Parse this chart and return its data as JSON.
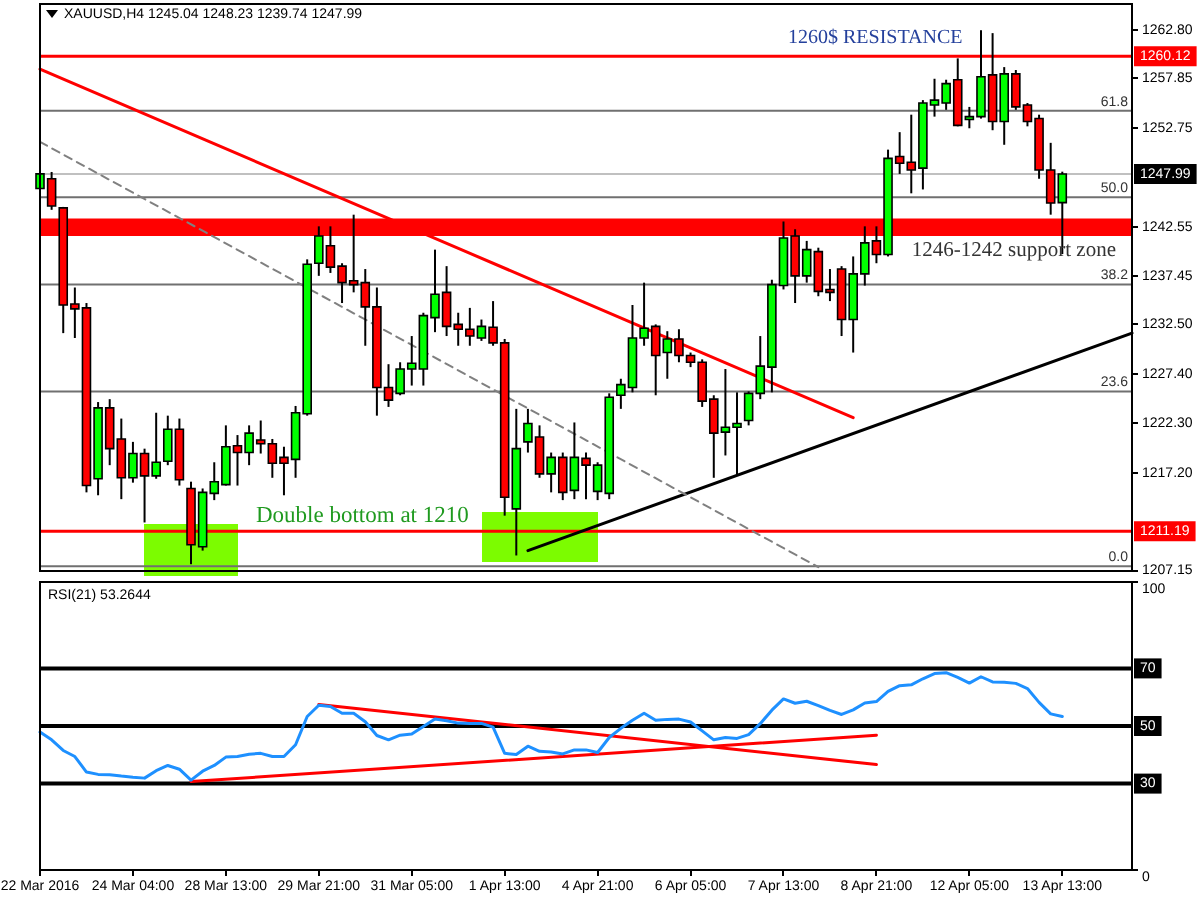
{
  "chart_data": [
    {
      "type": "candlestick",
      "title": "XAUUSD,H4 1245.04 1248.23 1239.74 1247.99",
      "categories": [
        null,
        null,
        null,
        null,
        null,
        null,
        null,
        null,
        null,
        null,
        null,
        null,
        null,
        null,
        null,
        null,
        null,
        null,
        null,
        null,
        null,
        null,
        null,
        null,
        null,
        null,
        null,
        null,
        null,
        null,
        null,
        null,
        null,
        null,
        null,
        null,
        null,
        null,
        null,
        null,
        null,
        null,
        null,
        null,
        null,
        null,
        null,
        null,
        null,
        null,
        null,
        null,
        null,
        null,
        null,
        null,
        null,
        null,
        null,
        null,
        null,
        null,
        null,
        null,
        null,
        null,
        null,
        null,
        null,
        null,
        null,
        null,
        null,
        null,
        null,
        null,
        null,
        null,
        null,
        null,
        null,
        null,
        null,
        null,
        null,
        null,
        null,
        null,
        null,
        null,
        null,
        null,
        null,
        null,
        null
      ],
      "ohlc": [
        [
          1246.5,
          1248.8,
          1244.5,
          1248.0
        ],
        [
          1247.5,
          1248.2,
          1244.3,
          1244.7
        ],
        [
          1244.5,
          1244.6,
          1231.6,
          1234.5
        ],
        [
          1234.6,
          1236.3,
          1231.1,
          1234.1
        ],
        [
          1234.2,
          1234.7,
          1215.2,
          1215.9
        ],
        [
          1216.6,
          1224.5,
          1214.9,
          1223.9
        ],
        [
          1223.9,
          1224.8,
          1218.0,
          1219.7
        ],
        [
          1220.7,
          1222.8,
          1214.5,
          1216.7
        ],
        [
          1216.7,
          1220.4,
          1216.2,
          1219.2
        ],
        [
          1219.2,
          1219.7,
          1212.1,
          1216.9
        ],
        [
          1216.9,
          1223.4,
          1216.6,
          1218.3
        ],
        [
          1218.4,
          1223.1,
          1218.0,
          1221.7
        ],
        [
          1221.7,
          1222.8,
          1215.9,
          1216.5
        ],
        [
          1215.6,
          1216.3,
          1207.8,
          1209.8
        ],
        [
          1209.6,
          1215.6,
          1209.2,
          1215.2
        ],
        [
          1215.1,
          1218.3,
          1214.4,
          1216.3
        ],
        [
          1216.0,
          1222.1,
          1215.9,
          1219.9
        ],
        [
          1220.0,
          1221.1,
          1215.9,
          1219.3
        ],
        [
          1219.3,
          1222.1,
          1218.0,
          1221.3
        ],
        [
          1220.6,
          1222.6,
          1219.2,
          1220.2
        ],
        [
          1220.2,
          1220.7,
          1216.7,
          1218.2
        ],
        [
          1218.8,
          1219.9,
          1214.9,
          1218.2
        ],
        [
          1218.6,
          1224.1,
          1216.7,
          1223.4
        ],
        [
          1223.3,
          1239.2,
          1223.1,
          1238.7
        ],
        [
          1238.8,
          1242.6,
          1237.5,
          1241.6
        ],
        [
          1240.6,
          1242.6,
          1237.8,
          1238.4
        ],
        [
          1238.5,
          1238.8,
          1234.7,
          1236.8
        ],
        [
          1237.0,
          1243.8,
          1235.8,
          1236.6
        ],
        [
          1236.8,
          1238.2,
          1230.3,
          1234.3
        ],
        [
          1234.3,
          1236.3,
          1223.1,
          1226.0
        ],
        [
          1226.0,
          1228.4,
          1224.0,
          1224.7
        ],
        [
          1225.4,
          1228.6,
          1225.2,
          1227.9
        ],
        [
          1227.9,
          1231.3,
          1226.2,
          1228.5
        ],
        [
          1227.9,
          1233.7,
          1226.2,
          1233.4
        ],
        [
          1233.2,
          1240.2,
          1231.7,
          1235.6
        ],
        [
          1235.8,
          1238.5,
          1231.3,
          1232.3
        ],
        [
          1232.5,
          1233.7,
          1230.3,
          1232.0
        ],
        [
          1232.0,
          1234.2,
          1230.3,
          1231.3
        ],
        [
          1231.1,
          1233.0,
          1230.8,
          1232.3
        ],
        [
          1232.2,
          1234.9,
          1230.3,
          1230.6
        ],
        [
          1230.6,
          1231.0,
          1212.8,
          1214.7
        ],
        [
          1213.5,
          1223.8,
          1208.7,
          1219.7
        ],
        [
          1220.4,
          1223.8,
          1219.3,
          1222.3
        ],
        [
          1220.9,
          1222.1,
          1216.7,
          1217.1
        ],
        [
          1217.1,
          1219.3,
          1215.2,
          1218.8
        ],
        [
          1218.8,
          1219.3,
          1214.4,
          1215.2
        ],
        [
          1215.4,
          1222.4,
          1214.5,
          1218.8
        ],
        [
          1218.7,
          1219.3,
          1214.5,
          1218.0
        ],
        [
          1215.3,
          1218.3,
          1214.4,
          1218.0
        ],
        [
          1215.1,
          1225.4,
          1214.5,
          1225.0
        ],
        [
          1225.2,
          1226.9,
          1223.8,
          1226.3
        ],
        [
          1226.0,
          1234.5,
          1225.5,
          1231.1
        ],
        [
          1231.1,
          1236.8,
          1230.3,
          1232.1
        ],
        [
          1232.3,
          1232.5,
          1225.2,
          1229.3
        ],
        [
          1229.6,
          1231.8,
          1226.9,
          1231.0
        ],
        [
          1231.0,
          1232.0,
          1228.6,
          1229.3
        ],
        [
          1229.3,
          1229.6,
          1228.1,
          1228.6
        ],
        [
          1228.6,
          1228.9,
          1224.0,
          1224.6
        ],
        [
          1224.8,
          1225.2,
          1216.7,
          1221.3
        ],
        [
          1221.4,
          1227.9,
          1219.0,
          1221.9
        ],
        [
          1221.9,
          1225.5,
          1216.9,
          1222.3
        ],
        [
          1222.6,
          1225.6,
          1222.1,
          1225.4
        ],
        [
          1225.4,
          1231.3,
          1224.8,
          1228.2
        ],
        [
          1228.1,
          1237.1,
          1225.5,
          1236.6
        ],
        [
          1236.5,
          1243.1,
          1236.1,
          1241.4
        ],
        [
          1241.6,
          1242.3,
          1234.7,
          1237.5
        ],
        [
          1237.5,
          1241.1,
          1236.8,
          1240.2
        ],
        [
          1240.0,
          1240.4,
          1235.4,
          1235.9
        ],
        [
          1236.1,
          1238.2,
          1234.9,
          1235.8
        ],
        [
          1238.2,
          1238.5,
          1231.3,
          1233.0
        ],
        [
          1233.0,
          1239.5,
          1229.6,
          1237.7
        ],
        [
          1237.7,
          1242.6,
          1236.5,
          1240.9
        ],
        [
          1241.1,
          1242.6,
          1238.8,
          1239.7
        ],
        [
          1239.7,
          1250.5,
          1239.5,
          1249.6
        ],
        [
          1249.8,
          1252.3,
          1248.0,
          1249.1
        ],
        [
          1249.2,
          1254.1,
          1246.0,
          1248.4
        ],
        [
          1248.6,
          1255.6,
          1246.4,
          1255.3
        ],
        [
          1255.1,
          1257.8,
          1253.9,
          1255.6
        ],
        [
          1255.3,
          1257.7,
          1254.6,
          1257.3
        ],
        [
          1257.7,
          1259.9,
          1252.9,
          1253.0
        ],
        [
          1253.6,
          1254.9,
          1252.7,
          1253.9
        ],
        [
          1253.9,
          1262.8,
          1253.7,
          1258.0
        ],
        [
          1258.2,
          1262.5,
          1252.5,
          1253.4
        ],
        [
          1253.4,
          1259.0,
          1251.0,
          1258.3
        ],
        [
          1258.3,
          1258.7,
          1254.6,
          1254.9
        ],
        [
          1255.1,
          1255.3,
          1252.9,
          1253.4
        ],
        [
          1253.7,
          1254.1,
          1247.5,
          1248.4
        ],
        [
          1248.4,
          1251.2,
          1243.8,
          1245.0
        ],
        [
          1245.04,
          1248.23,
          1239.74,
          1247.99
        ],
        null,
        null,
        null,
        null,
        null,
        null
      ],
      "colors": [
        "#00ff00",
        "#ff0000",
        "#ff0000",
        "#ff0000",
        "#ff0000",
        "#00ff00",
        "#ff0000",
        "#ff0000",
        "#00ff00",
        "#ff0000",
        "#00ff00",
        "#00ff00",
        "#ff0000",
        "#ff0000",
        "#00ff00",
        "#00ff00",
        "#00ff00",
        "#ff0000",
        "#00ff00",
        "#ff0000",
        "#ff0000",
        "#ff0000",
        "#00ff00",
        "#00ff00",
        "#00ff00",
        "#ff0000",
        "#ff0000",
        "#ff0000",
        "#ff0000",
        "#ff0000",
        "#ff0000",
        "#00ff00",
        "#00ff00",
        "#00ff00",
        "#00ff00",
        "#ff0000",
        "#ff0000",
        "#ff0000",
        "#00ff00",
        "#ff0000",
        "#ff0000",
        "#00ff00",
        "#00ff00",
        "#ff0000",
        "#00ff00",
        "#ff0000",
        "#00ff00",
        "#ff0000",
        "#00ff00",
        "#00ff00",
        "#00ff00",
        "#00ff00",
        "#00ff00",
        "#ff0000",
        "#00ff00",
        "#ff0000",
        "#ff0000",
        "#ff0000",
        "#ff0000",
        "#00ff00",
        "#00ff00",
        "#00ff00",
        "#00ff00",
        "#00ff00",
        "#00ff00",
        "#ff0000",
        "#00ff00",
        "#ff0000",
        "#ff0000",
        "#ff0000",
        "#00ff00",
        "#00ff00",
        "#ff0000",
        "#00ff00",
        "#ff0000",
        "#ff0000",
        "#00ff00",
        "#00ff00",
        "#00ff00",
        "#ff0000",
        "#00ff00",
        "#00ff00",
        "#ff0000",
        "#00ff00",
        "#ff0000",
        "#ff0000",
        "#ff0000",
        "#ff0000",
        "#00ff00",
        null,
        null,
        null,
        null,
        null,
        null
      ],
      "series": [
        {
          "type": "line",
          "color": "#ff0000",
          "values": [
            1258.8,
            null,
            null,
            null,
            null,
            null,
            null,
            null,
            null,
            null,
            null,
            null,
            null,
            null,
            null,
            null,
            null,
            null,
            null,
            null,
            null,
            null,
            null,
            null,
            null,
            null,
            null,
            null,
            null,
            null,
            null,
            null,
            null,
            null,
            null,
            null,
            null,
            null,
            null,
            null,
            null,
            null,
            null,
            null,
            null,
            null,
            null,
            null,
            null,
            null,
            null,
            null,
            null,
            null,
            null,
            null,
            null,
            null,
            null,
            null,
            null,
            null,
            null,
            null,
            null,
            null,
            null,
            null,
            null,
            null,
            1222.9,
            null,
            null,
            null,
            null,
            null,
            null,
            null,
            null,
            null,
            null,
            null,
            null,
            null,
            null,
            null,
            null,
            null,
            null,
            null,
            null,
            null,
            null,
            null,
            null
          ]
        },
        {
          "type": "line",
          "color": "#808080",
          "line_style": "dashed",
          "values": [
            1251.3,
            null,
            null,
            null,
            null,
            null,
            null,
            null,
            null,
            null,
            null,
            null,
            null,
            null,
            null,
            null,
            null,
            null,
            null,
            null,
            null,
            null,
            null,
            null,
            null,
            null,
            null,
            null,
            null,
            null,
            null,
            null,
            null,
            null,
            null,
            null,
            null,
            null,
            null,
            null,
            null,
            null,
            null,
            null,
            null,
            null,
            null,
            null,
            null,
            null,
            null,
            null,
            null,
            null,
            null,
            null,
            null,
            null,
            null,
            null,
            null,
            null,
            null,
            null,
            null,
            null,
            null,
            1207.5,
            null,
            null,
            null,
            null,
            null,
            null,
            null,
            null,
            null,
            null,
            null,
            null,
            null,
            null,
            null,
            null,
            null,
            null,
            null,
            null,
            null,
            null,
            null,
            null,
            null,
            null,
            null
          ]
        },
        {
          "type": "line",
          "color": "#000000",
          "values": [
            null,
            null,
            null,
            null,
            null,
            null,
            null,
            null,
            null,
            null,
            null,
            null,
            null,
            null,
            null,
            null,
            null,
            null,
            null,
            null,
            null,
            null,
            null,
            null,
            null,
            null,
            null,
            null,
            null,
            null,
            null,
            null,
            null,
            null,
            null,
            null,
            null,
            null,
            null,
            null,
            null,
            null,
            1209.2,
            null,
            null,
            null,
            null,
            null,
            null,
            null,
            null,
            null,
            null,
            null,
            null,
            null,
            null,
            null,
            null,
            null,
            null,
            null,
            null,
            null,
            null,
            null,
            null,
            null,
            null,
            null,
            null,
            null,
            null,
            null,
            null,
            null,
            null,
            null,
            null,
            null,
            null,
            null,
            null,
            null,
            null,
            null,
            null,
            null,
            null,
            null,
            null,
            null,
            null,
            null,
            1231.6
          ]
        }
      ],
      "ylim": [
        1207.1,
        1265.5
      ],
      "yticks": [
        {
          "value": 1262.8,
          "label": "1262.80"
        },
        1257.85,
        1252.75,
        1242.55,
        1237.45,
        {
          "value": 1232.5,
          "label": "1232.50"
        },
        {
          "value": 1227.4,
          "label": "1227.40"
        },
        {
          "value": 1222.3,
          "label": "1222.30"
        },
        {
          "value": 1217.2,
          "label": "1217.20"
        },
        1207.15
      ],
      "ref_lines": [
        {
          "axis": "y",
          "value": 1260.12,
          "label": "1260.12",
          "color": "#ff0000"
        },
        {
          "axis": "y",
          "value": 1211.19,
          "label": "1211.19",
          "color": "#ff0000"
        },
        {
          "axis": "y",
          "value": 1247.99,
          "label": "1247.99",
          "color": "#c0c0c0"
        },
        {
          "axis": "y",
          "value": 1254.5,
          "color": "#707070"
        },
        {
          "axis": "y",
          "value": 1245.6,
          "color": "#707070"
        },
        {
          "axis": "y",
          "value": 1236.6,
          "color": "#707070"
        },
        {
          "axis": "y",
          "value": 1225.6,
          "color": "#707070"
        },
        {
          "axis": "y",
          "value": 1207.6,
          "color": "#707070"
        }
      ],
      "bands": [
        {
          "axis": "y",
          "from": 1241.6,
          "to": 1243.4,
          "label": "1246-1242 support zone",
          "color": "#ff0000"
        }
      ],
      "annotations": [
        "1260$ RESISTANCE",
        "Double bottom at 1210",
        {
          "text": "61.8",
          "y": 1254.5
        },
        {
          "text": "50.0",
          "y": 1245.6
        },
        {
          "text": "38.2",
          "y": 1236.6
        },
        {
          "text": "23.6",
          "y": 1225.6
        },
        {
          "text": "0.0",
          "y": 1207.6
        }
      ],
      "tick_labels": "y"
    },
    {
      "type": "line",
      "title": "RSI(21) 53.2644",
      "categories": [
        "22 Mar 2016",
        null,
        null,
        null,
        null,
        null,
        null,
        null,
        "24 Mar 04:00",
        null,
        null,
        null,
        null,
        null,
        null,
        null,
        "28 Mar 13:00",
        null,
        null,
        null,
        null,
        null,
        null,
        null,
        "29 Mar 21:00",
        null,
        null,
        null,
        null,
        null,
        null,
        null,
        "31 Mar 05:00",
        null,
        null,
        null,
        null,
        null,
        null,
        null,
        "1 Apr 13:00",
        null,
        null,
        null,
        null,
        null,
        null,
        null,
        "4 Apr 21:00",
        null,
        null,
        null,
        null,
        null,
        null,
        null,
        "6 Apr 05:00",
        null,
        null,
        null,
        null,
        null,
        null,
        null,
        "7 Apr 13:00",
        null,
        null,
        null,
        null,
        null,
        null,
        null,
        "8 Apr 21:00",
        null,
        null,
        null,
        null,
        null,
        null,
        null,
        "12 Apr 05:00",
        null,
        null,
        null,
        null,
        null,
        null,
        null,
        "13 Apr 13:00",
        null,
        null,
        null,
        null,
        null,
        null
      ],
      "series": [
        {
          "color": "#1e90ff",
          "values": [
            47.9,
            45.2,
            41.5,
            39.4,
            34.0,
            33.2,
            33.1,
            32.6,
            32.2,
            31.9,
            34.5,
            36.3,
            35.0,
            31.2,
            34.3,
            36.3,
            39.2,
            39.4,
            40.2,
            40.5,
            39.4,
            39.4,
            43.5,
            53.3,
            57.2,
            56.8,
            54.4,
            54.4,
            51.5,
            46.7,
            45.2,
            46.8,
            47.2,
            49.8,
            52.4,
            51.8,
            51.0,
            50.9,
            50.9,
            49.6,
            40.5,
            40.1,
            43.0,
            41.2,
            41.0,
            40.3,
            41.7,
            41.7,
            40.8,
            46.0,
            49.2,
            52.0,
            54.4,
            52.0,
            52.3,
            52.4,
            51.4,
            48.3,
            45.2,
            46.0,
            45.7,
            47.0,
            50.8,
            55.5,
            59.4,
            57.9,
            58.6,
            57.1,
            55.4,
            54.0,
            55.6,
            58.0,
            58.5,
            62.0,
            64.0,
            64.3,
            66.4,
            68.2,
            68.5,
            66.9,
            64.9,
            67.1,
            65.3,
            65.2,
            64.8,
            63.0,
            58.2,
            54.2,
            53.3,
            null,
            null,
            null,
            null,
            null,
            null
          ]
        },
        {
          "color": "#ff0000",
          "values": [
            null,
            null,
            null,
            null,
            null,
            null,
            null,
            null,
            null,
            null,
            null,
            null,
            null,
            null,
            null,
            null,
            null,
            null,
            null,
            null,
            null,
            null,
            null,
            null,
            57.5,
            null,
            null,
            null,
            null,
            null,
            null,
            null,
            null,
            null,
            null,
            null,
            null,
            null,
            null,
            null,
            null,
            null,
            null,
            null,
            null,
            null,
            null,
            null,
            null,
            null,
            null,
            null,
            null,
            null,
            null,
            null,
            null,
            null,
            null,
            null,
            null,
            null,
            null,
            null,
            null,
            null,
            null,
            null,
            null,
            null,
            null,
            null,
            36.6,
            null,
            null,
            null,
            null,
            null,
            null,
            null,
            null,
            null,
            null,
            null,
            null,
            null,
            null,
            null,
            null,
            null,
            null,
            null,
            null,
            null,
            null
          ]
        },
        {
          "color": "#ff0000",
          "values": [
            null,
            null,
            null,
            null,
            null,
            null,
            null,
            null,
            null,
            null,
            null,
            null,
            null,
            30.7,
            null,
            null,
            null,
            null,
            null,
            null,
            null,
            null,
            null,
            null,
            null,
            null,
            null,
            null,
            null,
            null,
            null,
            null,
            null,
            null,
            null,
            null,
            null,
            null,
            null,
            null,
            null,
            null,
            null,
            null,
            null,
            null,
            null,
            null,
            null,
            null,
            null,
            null,
            null,
            null,
            null,
            null,
            null,
            null,
            null,
            null,
            null,
            null,
            null,
            null,
            null,
            null,
            null,
            null,
            null,
            null,
            null,
            null,
            46.8,
            null,
            null,
            null,
            null,
            null,
            null,
            null,
            null,
            null,
            null,
            null,
            null,
            null,
            null,
            null,
            null,
            null,
            null,
            null,
            null,
            null,
            null
          ]
        }
      ],
      "ylim": [
        0,
        100
      ],
      "yticks": [
        0,
        100
      ],
      "ref_lines": [
        {
          "axis": "y",
          "value": 70,
          "label": "70",
          "color": "#000000"
        },
        {
          "axis": "y",
          "value": 50,
          "label": "50",
          "color": "#000000"
        },
        {
          "axis": "y",
          "value": 30,
          "label": "30",
          "color": "#000000"
        }
      ]
    }
  ]
}
